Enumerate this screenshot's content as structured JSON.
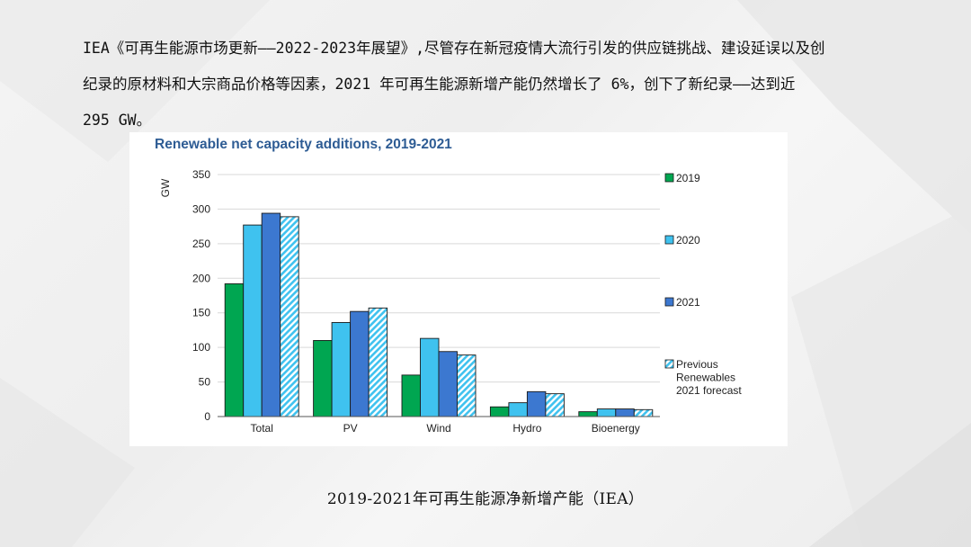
{
  "intro_text": "IEA《可再生能源市场更新——2022-2023年展望》,尽管存在新冠疫情大流行引发的供应链挑战、建设延误以及创纪录的原材料和大宗商品价格等因素，2021 年可再生能源新增产能仍然增长了 6%，创下了新纪录——达到近 295 GW。",
  "caption": "2019-2021年可再生能源净新增产能（IEA）",
  "colors": {
    "s2019": "#00a651",
    "s2020": "#3fc2ef",
    "s2021": "#3c78d0",
    "forecast_stripe": "#3fc2ef",
    "title": "#2e5c94",
    "grid": "#d9d9d9"
  },
  "chart_data": {
    "type": "bar",
    "title": "Renewable net capacity additions, 2019-2021",
    "ylabel": "GW",
    "xlabel": "",
    "ylim": [
      0,
      350
    ],
    "yticks": [
      0,
      50,
      100,
      150,
      200,
      250,
      300,
      350
    ],
    "grid": true,
    "legend_position": "right",
    "categories": [
      "Total",
      "PV",
      "Wind",
      "Hydro",
      "Bioenergy"
    ],
    "series": [
      {
        "name": "2019",
        "values": [
          192,
          110,
          60,
          14,
          7
        ],
        "pattern": "solid"
      },
      {
        "name": "2020",
        "values": [
          277,
          136,
          113,
          20,
          11
        ],
        "pattern": "solid"
      },
      {
        "name": "2021",
        "values": [
          294,
          152,
          94,
          36,
          11
        ],
        "pattern": "solid"
      },
      {
        "name": "Previous Renewables 2021 forecast",
        "legend_lines": [
          "Previous",
          "Renewables",
          "2021 forecast"
        ],
        "values": [
          289,
          157,
          89,
          33,
          10
        ],
        "pattern": "hatched"
      }
    ]
  }
}
